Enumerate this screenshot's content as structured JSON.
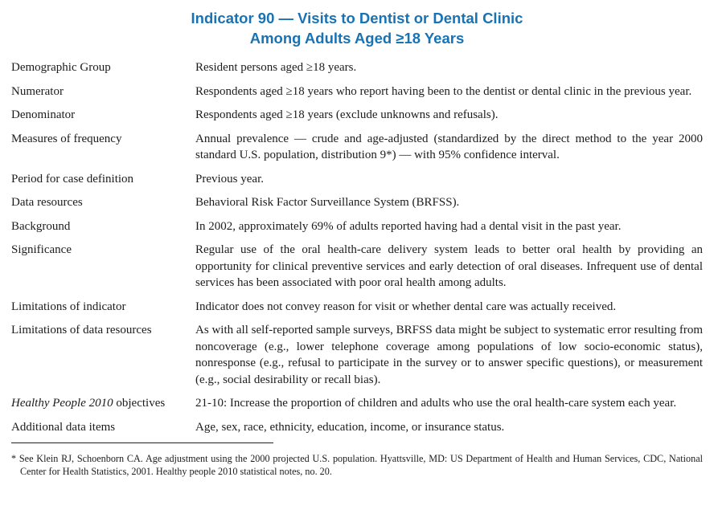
{
  "title": {
    "line1": "Indicator 90 — Visits to Dentist or Dental Clinic",
    "line2": "Among Adults Aged ≥18 Years"
  },
  "rows": [
    {
      "label": "Demographic Group",
      "text": "Resident persons aged ≥18 years."
    },
    {
      "label": "Numerator",
      "text": "Respondents aged ≥18 years who report having been to the dentist or dental clinic in the previous year."
    },
    {
      "label": "Denominator",
      "text": "Respondents aged ≥18 years (exclude unknowns and refusals)."
    },
    {
      "label": "Measures of frequency",
      "text": "Annual prevalence — crude and age-adjusted (standardized by the direct method to the year 2000 standard U.S. population, distribution 9*) — with 95% confidence interval."
    },
    {
      "label": "Period for case definition",
      "text": "Previous year."
    },
    {
      "label": "Data resources",
      "text": "Behavioral Risk Factor Surveillance System (BRFSS)."
    },
    {
      "label": "Background",
      "text": "In 2002, approximately 69% of adults reported having had a dental visit in the past year."
    },
    {
      "label": "Significance",
      "text": "Regular use of the oral health-care delivery system leads to better oral health by providing an opportunity for clinical preventive services and early detection of oral diseases. Infrequent use of dental services has been associated with poor oral health among adults."
    },
    {
      "label": "Limitations of indicator",
      "text": "Indicator does not convey reason for visit or whether dental care was actually received."
    },
    {
      "label": "Limitations of data resources",
      "text": "As with all self-reported sample surveys, BRFSS data might be subject to systematic error resulting from noncoverage (e.g., lower telephone coverage among populations of low socio-economic status), nonresponse (e.g., refusal to participate in the survey or to answer specific questions), or measurement (e.g., social desirability or recall bias)."
    },
    {
      "label_em": "Healthy People 2010",
      "label": " objectives",
      "text": "21-10: Increase the proportion of children and adults who use the oral health-care system each year."
    },
    {
      "label": "Additional data items",
      "text": "Age, sex, race, ethnicity, education, income, or insurance status."
    }
  ],
  "footnote": "* See Klein RJ, Schoenborn CA. Age adjustment using the 2000 projected U.S. population. Hyattsville, MD: US Department of Health and Human Services, CDC, National Center for Health Statistics, 2001. Healthy people 2010 statistical notes, no. 20."
}
